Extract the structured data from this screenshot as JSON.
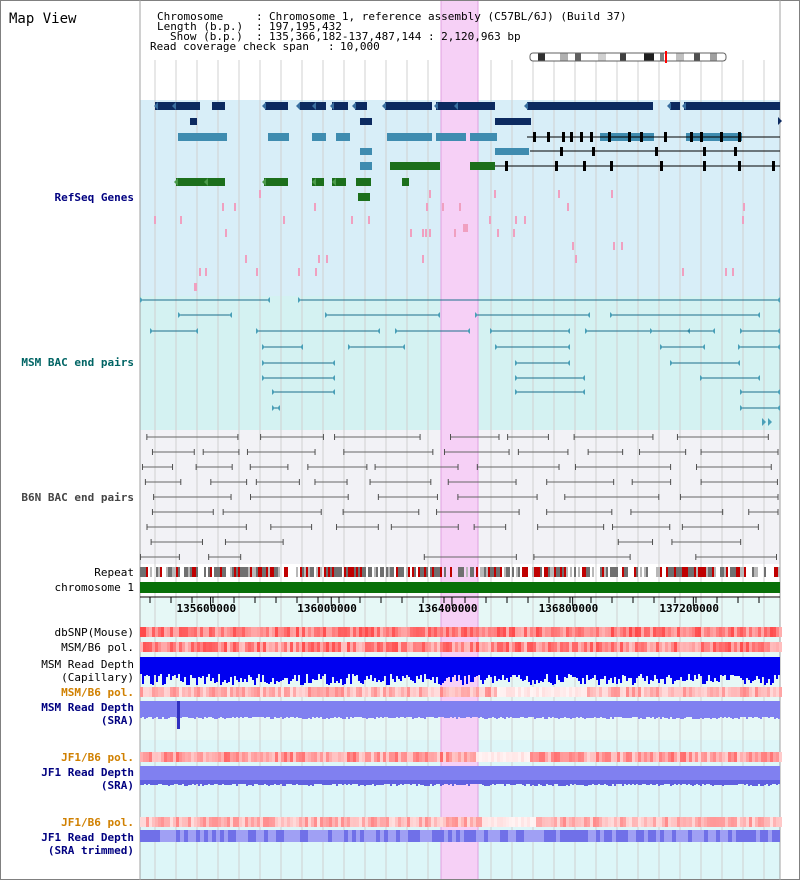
{
  "view": {
    "title": "Map View",
    "info": {
      "chromosome_label": "Chromosome",
      "chromosome_value": "Chromosome 1, reference assembly (C57BL/6J) (Build 37)",
      "length_label": "Length (b.p.)",
      "length_value": "197,195,432",
      "show_label": "Show (b.p.)",
      "show_value": "135,366,182-137,487,144 : 2,120,963 bp",
      "coverage_label": "Read coverage check span",
      "coverage_value": "10,000",
      "sep": ":"
    }
  },
  "tracks": {
    "refseq": "RefSeq Genes",
    "msm_bac": "MSM BAC end pairs",
    "b6n_bac": "B6N BAC end pairs",
    "repeat": "Repeat",
    "chromosome": "chromosome 1",
    "dbsnp": "dbSNP(Mouse)",
    "msm_pol1": "MSM/B6 pol.",
    "msm_depth_cap_1": "MSM Read Depth",
    "msm_depth_cap_2": "(Capillary)",
    "msm_pol2": "MSM/B6 pol.",
    "msm_depth_sra_1": "MSM Read Depth",
    "msm_depth_sra_2": "(SRA)",
    "jf1_pol1": "JF1/B6 pol.",
    "jf1_depth_1": "JF1 Read Depth",
    "jf1_depth_2": "(SRA)",
    "jf1_pol2": "JF1/B6 pol.",
    "jf1_trim_1": "JF1 Read Depth",
    "jf1_trim_2": "(SRA trimmed)"
  },
  "axis": {
    "ticks": [
      {
        "pos": 135600000,
        "label": "135600000"
      },
      {
        "pos": 136000000,
        "label": "136000000"
      },
      {
        "pos": 136400000,
        "label": "136400000"
      },
      {
        "pos": 136800000,
        "label": "136800000"
      },
      {
        "pos": 137200000,
        "label": "137200000"
      }
    ],
    "range_start": 135366182,
    "range_end": 137487144
  },
  "colors": {
    "label_blue": "#000080",
    "label_teal": "#006464",
    "label_gray": "#444444",
    "label_orange": "#d08000",
    "highlight": "#f6d0f6",
    "refseq_bg": "#d8eef8",
    "msm_bg": "#d4f2f2",
    "b6n_bg": "#f2f2f6",
    "gene_navy": "#0c2a60",
    "gene_blue": "#3f8cb0",
    "gene_green": "#1c6f1c",
    "gene_pink": "#f0a0c0",
    "bac_teal": "#1c6f8c",
    "bac_gray": "#666666",
    "chrom_green": "#087008",
    "snp_red": "#e83030",
    "depth_blue": "#0000f0",
    "depth_light": "#8080f0"
  }
}
